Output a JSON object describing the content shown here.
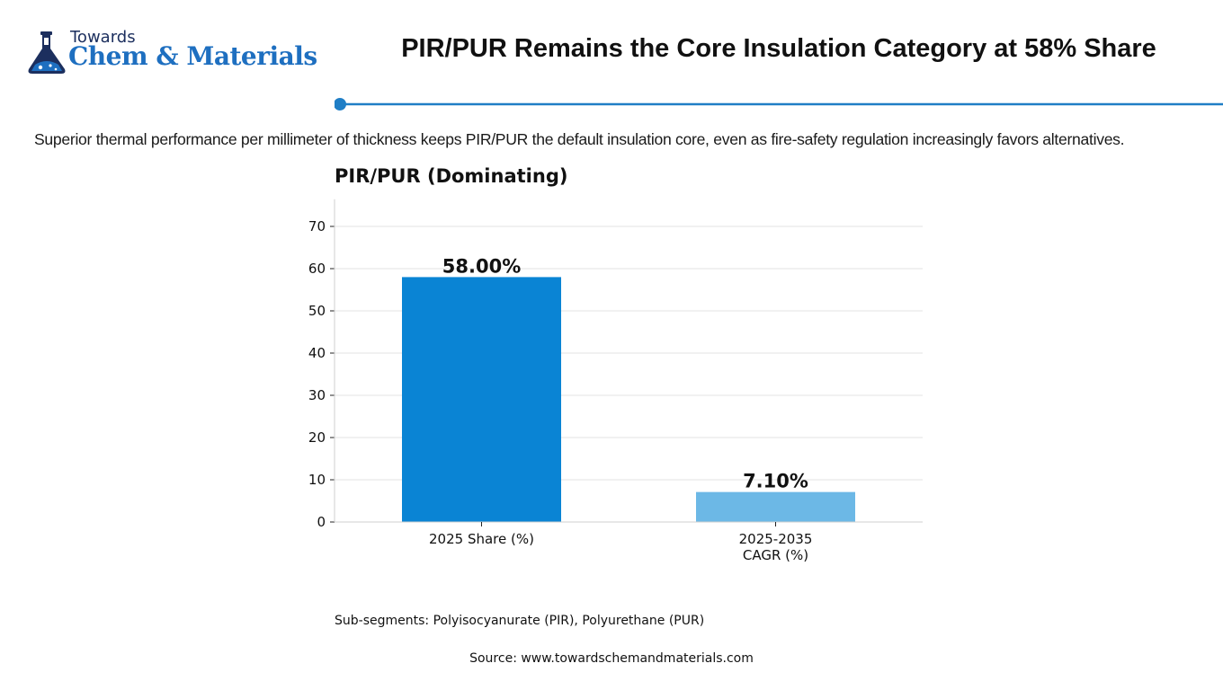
{
  "logo": {
    "line1": "Towards",
    "line2": "Chem & Materials"
  },
  "header": {
    "title": "PIR/PUR Remains the Core Insulation Category at 58% Share"
  },
  "subtitle": "Superior thermal performance per millimeter of thickness keeps PIR/PUR the default insulation core, even as fire-safety regulation increasingly favors alternatives.",
  "colors": {
    "accent": "#1f7ec6",
    "bar_primary": "#0a84d4",
    "bar_secondary": "#6cb8e6",
    "grid": "#e3e3e3"
  },
  "chart_data": {
    "type": "bar",
    "title": "PIR/PUR  (Dominating)",
    "categories": [
      [
        "2025 Share (%)"
      ],
      [
        "2025-2035",
        "CAGR (%)"
      ]
    ],
    "values": [
      58.0,
      7.1
    ],
    "value_labels": [
      "58.00%",
      "7.10%"
    ],
    "bar_colors": [
      "#0a84d4",
      "#6cb8e6"
    ],
    "xlabel": "",
    "ylabel": "",
    "ylim": [
      0,
      76
    ],
    "yticks": [
      0,
      10,
      20,
      30,
      40,
      50,
      60,
      70
    ],
    "grid": true,
    "legend": "none"
  },
  "note": "Sub-segments: Polyisocyanurate (PIR), Polyurethane (PUR)",
  "source": "Source: www.towardschemandmaterials.com"
}
